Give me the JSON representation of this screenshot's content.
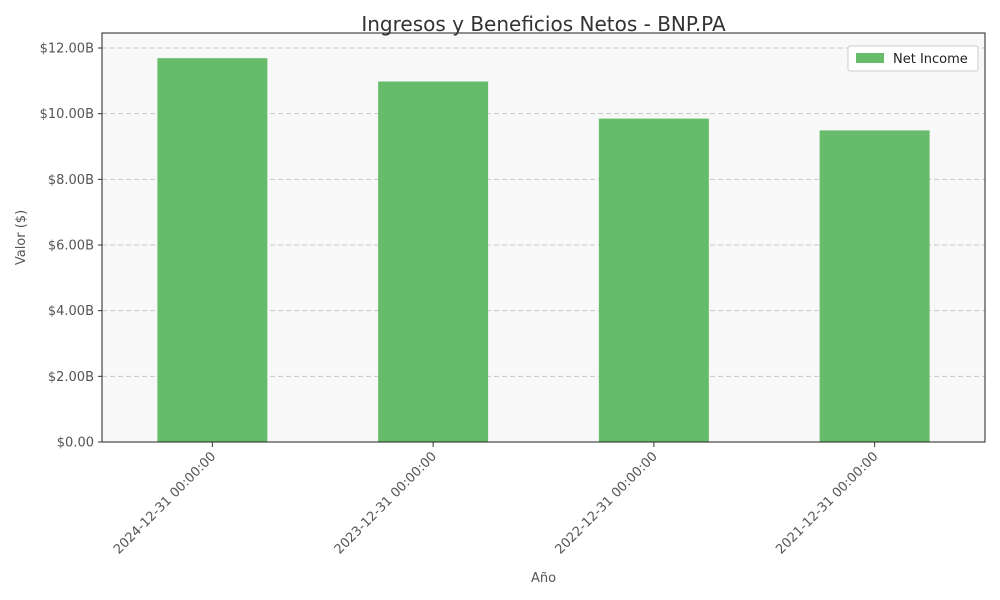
{
  "chart_data": {
    "type": "bar",
    "title": "Ingresos y Beneficios Netos - BNP.PA",
    "xlabel": "Año",
    "ylabel": "Valor ($)",
    "categories": [
      "2024-12-31 00:00:00",
      "2023-12-31 00:00:00",
      "2022-12-31 00:00:00",
      "2021-12-31 00:00:00"
    ],
    "series": [
      {
        "name": "Net Income",
        "values": [
          11.69,
          10.98,
          9.85,
          9.49
        ],
        "color": "#67bc6b"
      }
    ],
    "ylim": [
      0,
      12
    ],
    "yticks": [
      0,
      2,
      4,
      6,
      8,
      10,
      12
    ],
    "ytick_labels": [
      "$0.00",
      "$2.00B",
      "$4.00B",
      "$6.00B",
      "$8.00B",
      "$10.00B",
      "$12.00B"
    ],
    "grid": true,
    "grid_axis": "y",
    "legend_position": "top-right",
    "plot_background": "#f8f8f8"
  }
}
